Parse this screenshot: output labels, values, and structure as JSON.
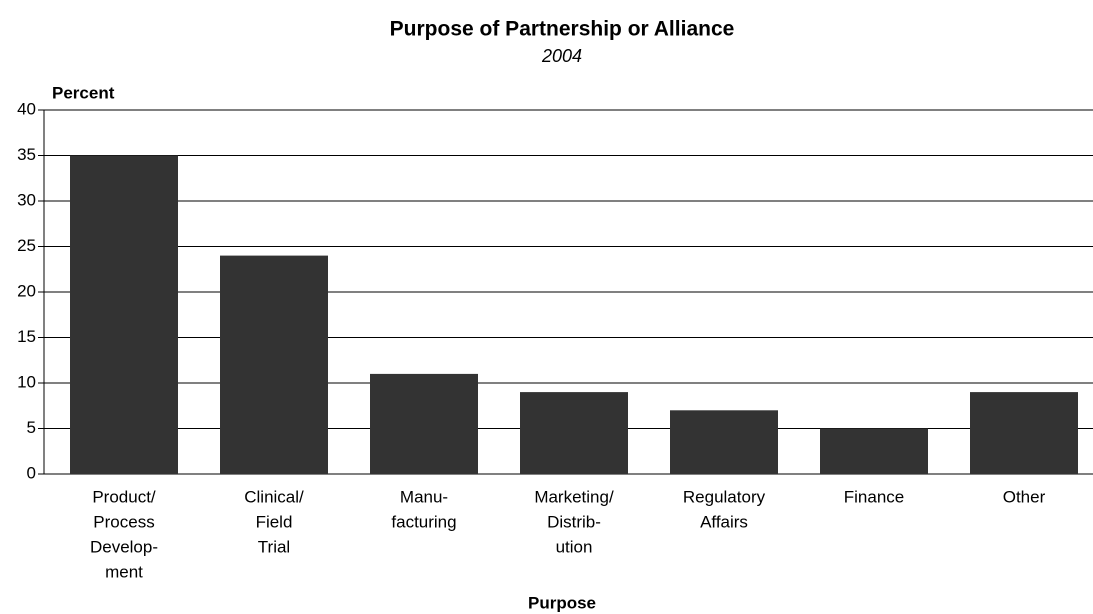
{
  "chart_data": {
    "type": "bar",
    "title": "Purpose of Partnership or Alliance",
    "subtitle": "2004",
    "y_label": "Percent",
    "x_label": "Purpose",
    "categories": [
      [
        "Product/",
        "Process",
        "Develop-",
        "ment"
      ],
      [
        "Clinical/",
        "Field",
        "Trial"
      ],
      [
        "Manu-",
        "facturing"
      ],
      [
        "Marketing/",
        "Distrib-",
        "ution"
      ],
      [
        "Regulatory",
        "Affairs"
      ],
      [
        "Finance"
      ],
      [
        "Other"
      ]
    ],
    "values": [
      35,
      24,
      11,
      9,
      7,
      5,
      9
    ],
    "color": "#333333",
    "ylim": [
      0,
      40
    ],
    "yticks": [
      0,
      5,
      10,
      15,
      20,
      25,
      30,
      35,
      40
    ],
    "grid": true
  }
}
